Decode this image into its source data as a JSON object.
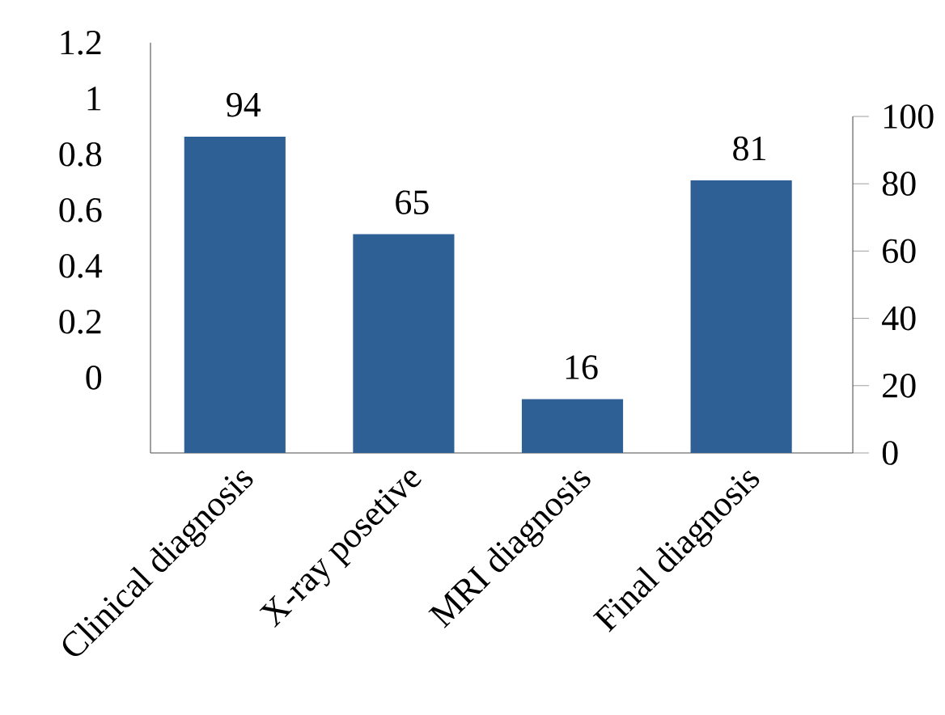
{
  "chart_data": {
    "type": "bar",
    "categories": [
      "Clinical diagnosis",
      "X-ray posetive",
      "MRI diagnosis",
      "Final diagnosis"
    ],
    "series": [
      {
        "color": "#2e6096",
        "values": [
          94,
          65,
          16,
          81
        ],
        "axis": "y2"
      }
    ],
    "data_labels": true,
    "ylim": [
      -0.27,
      1.2
    ],
    "yticks": [
      0,
      0.2,
      0.4,
      0.6,
      0.8,
      1,
      1.2
    ],
    "y2lim": [
      0,
      100
    ],
    "y2ticks": [
      0,
      20,
      40,
      60,
      80,
      100
    ]
  }
}
